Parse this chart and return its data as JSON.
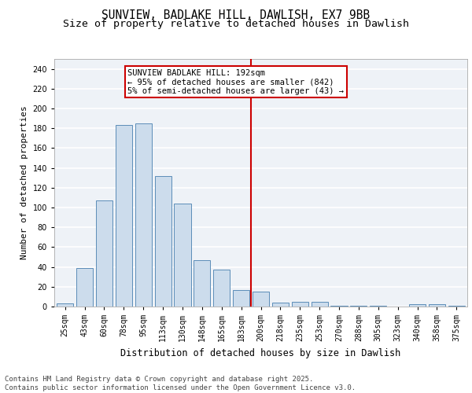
{
  "title1": "SUNVIEW, BADLAKE HILL, DAWLISH, EX7 9BB",
  "title2": "Size of property relative to detached houses in Dawlish",
  "xlabel": "Distribution of detached houses by size in Dawlish",
  "ylabel": "Number of detached properties",
  "categories": [
    "25sqm",
    "43sqm",
    "60sqm",
    "78sqm",
    "95sqm",
    "113sqm",
    "130sqm",
    "148sqm",
    "165sqm",
    "183sqm",
    "200sqm",
    "218sqm",
    "235sqm",
    "253sqm",
    "270sqm",
    "288sqm",
    "305sqm",
    "323sqm",
    "340sqm",
    "358sqm",
    "375sqm"
  ],
  "values": [
    3,
    39,
    107,
    183,
    185,
    132,
    104,
    47,
    37,
    17,
    15,
    4,
    5,
    5,
    1,
    1,
    1,
    0,
    2,
    2,
    1
  ],
  "bar_color": "#ccdcec",
  "bar_edgecolor": "#5b8db8",
  "vline_color": "#cc0000",
  "annotation_title": "SUNVIEW BADLAKE HILL: 192sqm",
  "annotation_line1": "← 95% of detached houses are smaller (842)",
  "annotation_line2": "5% of semi-detached houses are larger (43) →",
  "annotation_box_edgecolor": "#cc0000",
  "ylim": [
    0,
    250
  ],
  "yticks": [
    0,
    20,
    40,
    60,
    80,
    100,
    120,
    140,
    160,
    180,
    200,
    220,
    240
  ],
  "background_color": "#eef2f7",
  "grid_color": "#ffffff",
  "footer": "Contains HM Land Registry data © Crown copyright and database right 2025.\nContains public sector information licensed under the Open Government Licence v3.0.",
  "title1_fontsize": 10.5,
  "title2_fontsize": 9.5,
  "xlabel_fontsize": 8.5,
  "ylabel_fontsize": 8,
  "tick_fontsize": 7,
  "footer_fontsize": 6.5,
  "annot_fontsize": 7.5
}
